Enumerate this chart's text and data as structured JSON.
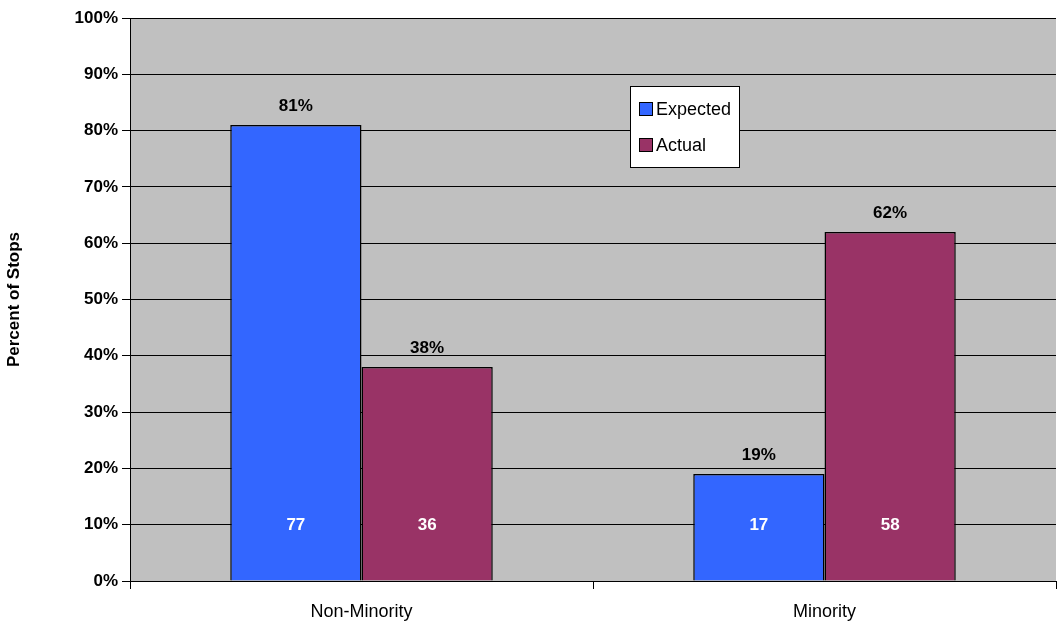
{
  "chart_data": {
    "type": "bar",
    "ylabel": "Percent of Stops",
    "categories": [
      "Non-Minority",
      "Minority"
    ],
    "series": [
      {
        "name": "Expected",
        "color": "#3366ff",
        "values": [
          81,
          19
        ],
        "value_labels": [
          "81%",
          "19%"
        ]
      },
      {
        "name": "Actual",
        "color": "#993366",
        "values": [
          38,
          62
        ],
        "value_labels": [
          "38%",
          "62%"
        ]
      }
    ],
    "ylim": [
      0,
      100
    ],
    "yticks": [
      {
        "value": 0,
        "label": "0%"
      },
      {
        "value": 10,
        "label": "10%"
      },
      {
        "value": 20,
        "label": "20%"
      },
      {
        "value": 30,
        "label": "30%"
      },
      {
        "value": 40,
        "label": "40%"
      },
      {
        "value": 50,
        "label": "50%"
      },
      {
        "value": 60,
        "label": "60%"
      },
      {
        "value": 70,
        "label": "70%"
      },
      {
        "value": 80,
        "label": "80%"
      },
      {
        "value": 90,
        "label": "90%"
      },
      {
        "value": 100,
        "label": "100%"
      }
    ],
    "grid": "y",
    "legend": "top",
    "annotations": [
      "77",
      "36",
      "17",
      "58"
    ]
  }
}
